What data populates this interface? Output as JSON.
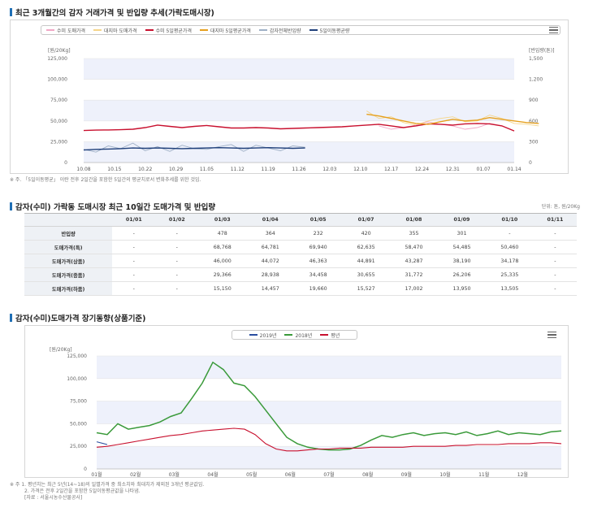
{
  "section1": {
    "title": "최근 3개월간의 감자 거래가격 및 반입량 추세(가락도매시장)",
    "note": "※ 주. 「5일이동평균」 이란 전후 2일간을 포함한 5일간의 평균치로서 변화추세를 위한 것임."
  },
  "section2": {
    "title": "감자(수미) 가락동 도매시장 최근 10일간 도매가격 및 반입량",
    "unit": "단위: 톤, 원/20Kg",
    "headers": [
      "",
      "01/01",
      "01/02",
      "01/03",
      "01/04",
      "01/05",
      "01/07",
      "01/08",
      "01/09",
      "01/10",
      "01/11"
    ],
    "rows": [
      {
        "label": "반입량",
        "values": [
          "-",
          "-",
          "478",
          "364",
          "232",
          "420",
          "355",
          "301",
          "-",
          "-"
        ]
      },
      {
        "label": "도매가격(특)",
        "values": [
          "-",
          "-",
          "68,768",
          "64,781",
          "69,940",
          "62,635",
          "58,470",
          "54,485",
          "50,460",
          "-"
        ]
      },
      {
        "label": "도매가격(상품)",
        "values": [
          "-",
          "-",
          "46,000",
          "44,072",
          "46,363",
          "44,891",
          "43,287",
          "38,190",
          "34,178",
          "-"
        ]
      },
      {
        "label": "도매가격(중품)",
        "values": [
          "-",
          "-",
          "29,366",
          "28,938",
          "34,458",
          "30,655",
          "31,772",
          "26,206",
          "25,335",
          "-"
        ]
      },
      {
        "label": "도매가격(하품)",
        "values": [
          "-",
          "-",
          "15,150",
          "14,457",
          "19,660",
          "15,527",
          "17,002",
          "13,950",
          "13,505",
          "-"
        ]
      }
    ]
  },
  "section3": {
    "title": "감자(수미)도매가격 장기동향(상품기준)",
    "note1": "※ 주 1. 평년치는 최근 5년(14~18)의 일별가격 중 최소치와 최대치가 제외된 3개년 평균값임.",
    "note2": "2. 가격은 전후 2일간을 포함한 5일이동평균값을 나타냄.",
    "note3": "[자료 : 서울시농수산물공사]"
  },
  "colors": {
    "sumi": "#f1a7c6",
    "daeji": "#f5d58a",
    "sumi_ma": "#c8102e",
    "daeji_ma": "#e6a01e",
    "total_in": "#9fb0c6",
    "in_ma": "#1f3f7a",
    "y2019": "#2a4ea0",
    "y2018": "#3a9a3a",
    "avg": "#c8102e",
    "band": "#eef1fb"
  },
  "chart_data": [
    {
      "type": "line",
      "legend": [
        "수미 도매가격",
        "대지마 도매가격",
        "수미 5일평균가격",
        "대지마 5일평균가격",
        "감자전체반입량",
        "5일이동평균량"
      ],
      "ylabel": "[원/20Kg]",
      "y2label": "[반입량(톤)]",
      "ylim": [
        0,
        125000
      ],
      "y2lim": [
        0,
        1500
      ],
      "yticks": [
        "0",
        "25,000",
        "50,000",
        "75,000",
        "100,000",
        "125,000"
      ],
      "y2ticks": [
        "0",
        "300",
        "600",
        "900",
        "1,200",
        "1,500"
      ],
      "xticks": [
        "10.08",
        "10.15",
        "10.22",
        "10.29",
        "11.05",
        "11.12",
        "11.19",
        "11.26",
        "12.03",
        "12.10",
        "12.17",
        "12.24",
        "12.31",
        "01.07",
        "01.14"
      ],
      "series": [
        {
          "name": "수미 5일평균가격",
          "axis": "left",
          "values": [
            38500,
            39000,
            39200,
            39500,
            40000,
            42000,
            45000,
            43500,
            42000,
            43500,
            44500,
            43000,
            41500,
            41500,
            42000,
            41500,
            40500,
            41000,
            41500,
            42000,
            42500,
            43000,
            44000,
            45000,
            46000,
            44000,
            42000,
            44000,
            46500,
            46000,
            45000,
            46500,
            47000,
            46500,
            44000,
            38000
          ]
        },
        {
          "name": "대지마 5일평균가격",
          "axis": "left",
          "start": 23,
          "values": [
            58000,
            56000,
            53000,
            50000,
            47000,
            46000,
            49000,
            52000,
            50000,
            51000,
            54000,
            52000,
            50000,
            48000,
            47000
          ]
        },
        {
          "name": "수미 도매가격",
          "axis": "left",
          "start": 24,
          "values": [
            44000,
            40000,
            42000,
            45000,
            49000,
            46000,
            44000,
            40000,
            42000,
            47000,
            44000,
            38000
          ]
        },
        {
          "name": "대지마 도매가격",
          "axis": "left",
          "start": 23,
          "values": [
            62000,
            53000,
            55000,
            48000,
            45000,
            50000,
            53000,
            55000,
            49000,
            50000,
            57000,
            53000,
            47000,
            46000,
            44000
          ]
        },
        {
          "name": "감자전체반입량",
          "axis": "right",
          "end": 18,
          "values": [
            190,
            150,
            240,
            200,
            280,
            170,
            230,
            160,
            250,
            200,
            190,
            230,
            260,
            160,
            250,
            210,
            170,
            240,
            220
          ]
        },
        {
          "name": "5일이동평균량",
          "axis": "right",
          "end": 18,
          "values": [
            180,
            190,
            195,
            200,
            210,
            205,
            210,
            205,
            200,
            205,
            210,
            215,
            210,
            205,
            210,
            215,
            210,
            205,
            210
          ]
        }
      ]
    },
    {
      "type": "line",
      "legend": [
        "2019년",
        "2018년",
        "평년"
      ],
      "ylabel": "[원/20Kg]",
      "ylim": [
        0,
        125000
      ],
      "yticks": [
        "0",
        "25,000",
        "50,000",
        "75,000",
        "100,000",
        "125,000"
      ],
      "xticks": [
        "01월",
        "02월",
        "03월",
        "04월",
        "05월",
        "06월",
        "07월",
        "08월",
        "09월",
        "10월",
        "11월",
        "12월"
      ],
      "series": [
        {
          "name": "2018년",
          "values": [
            40000,
            38000,
            50000,
            44000,
            46000,
            48000,
            52000,
            58000,
            62000,
            78000,
            95000,
            118000,
            110000,
            95000,
            92000,
            80000,
            65000,
            50000,
            35000,
            28000,
            24000,
            22000,
            21000,
            21000,
            22000,
            26000,
            32000,
            37000,
            35000,
            38000,
            40000,
            37000,
            39000,
            40000,
            38000,
            41000,
            37000,
            39000,
            42000,
            38000,
            40000,
            39000,
            38000,
            41000,
            42000
          ]
        },
        {
          "name": "평년",
          "values": [
            24000,
            25000,
            27000,
            29000,
            31000,
            33000,
            35000,
            37000,
            38000,
            40000,
            42000,
            43000,
            44000,
            45000,
            44000,
            38000,
            28000,
            22000,
            20000,
            20000,
            21000,
            22000,
            22000,
            23000,
            23000,
            23000,
            24000,
            24000,
            24000,
            24000,
            25000,
            25000,
            25000,
            25000,
            26000,
            26000,
            27000,
            27000,
            27000,
            28000,
            28000,
            28000,
            29000,
            29000,
            28000
          ]
        },
        {
          "name": "2019년",
          "values": [
            30000,
            27000
          ]
        }
      ]
    }
  ]
}
